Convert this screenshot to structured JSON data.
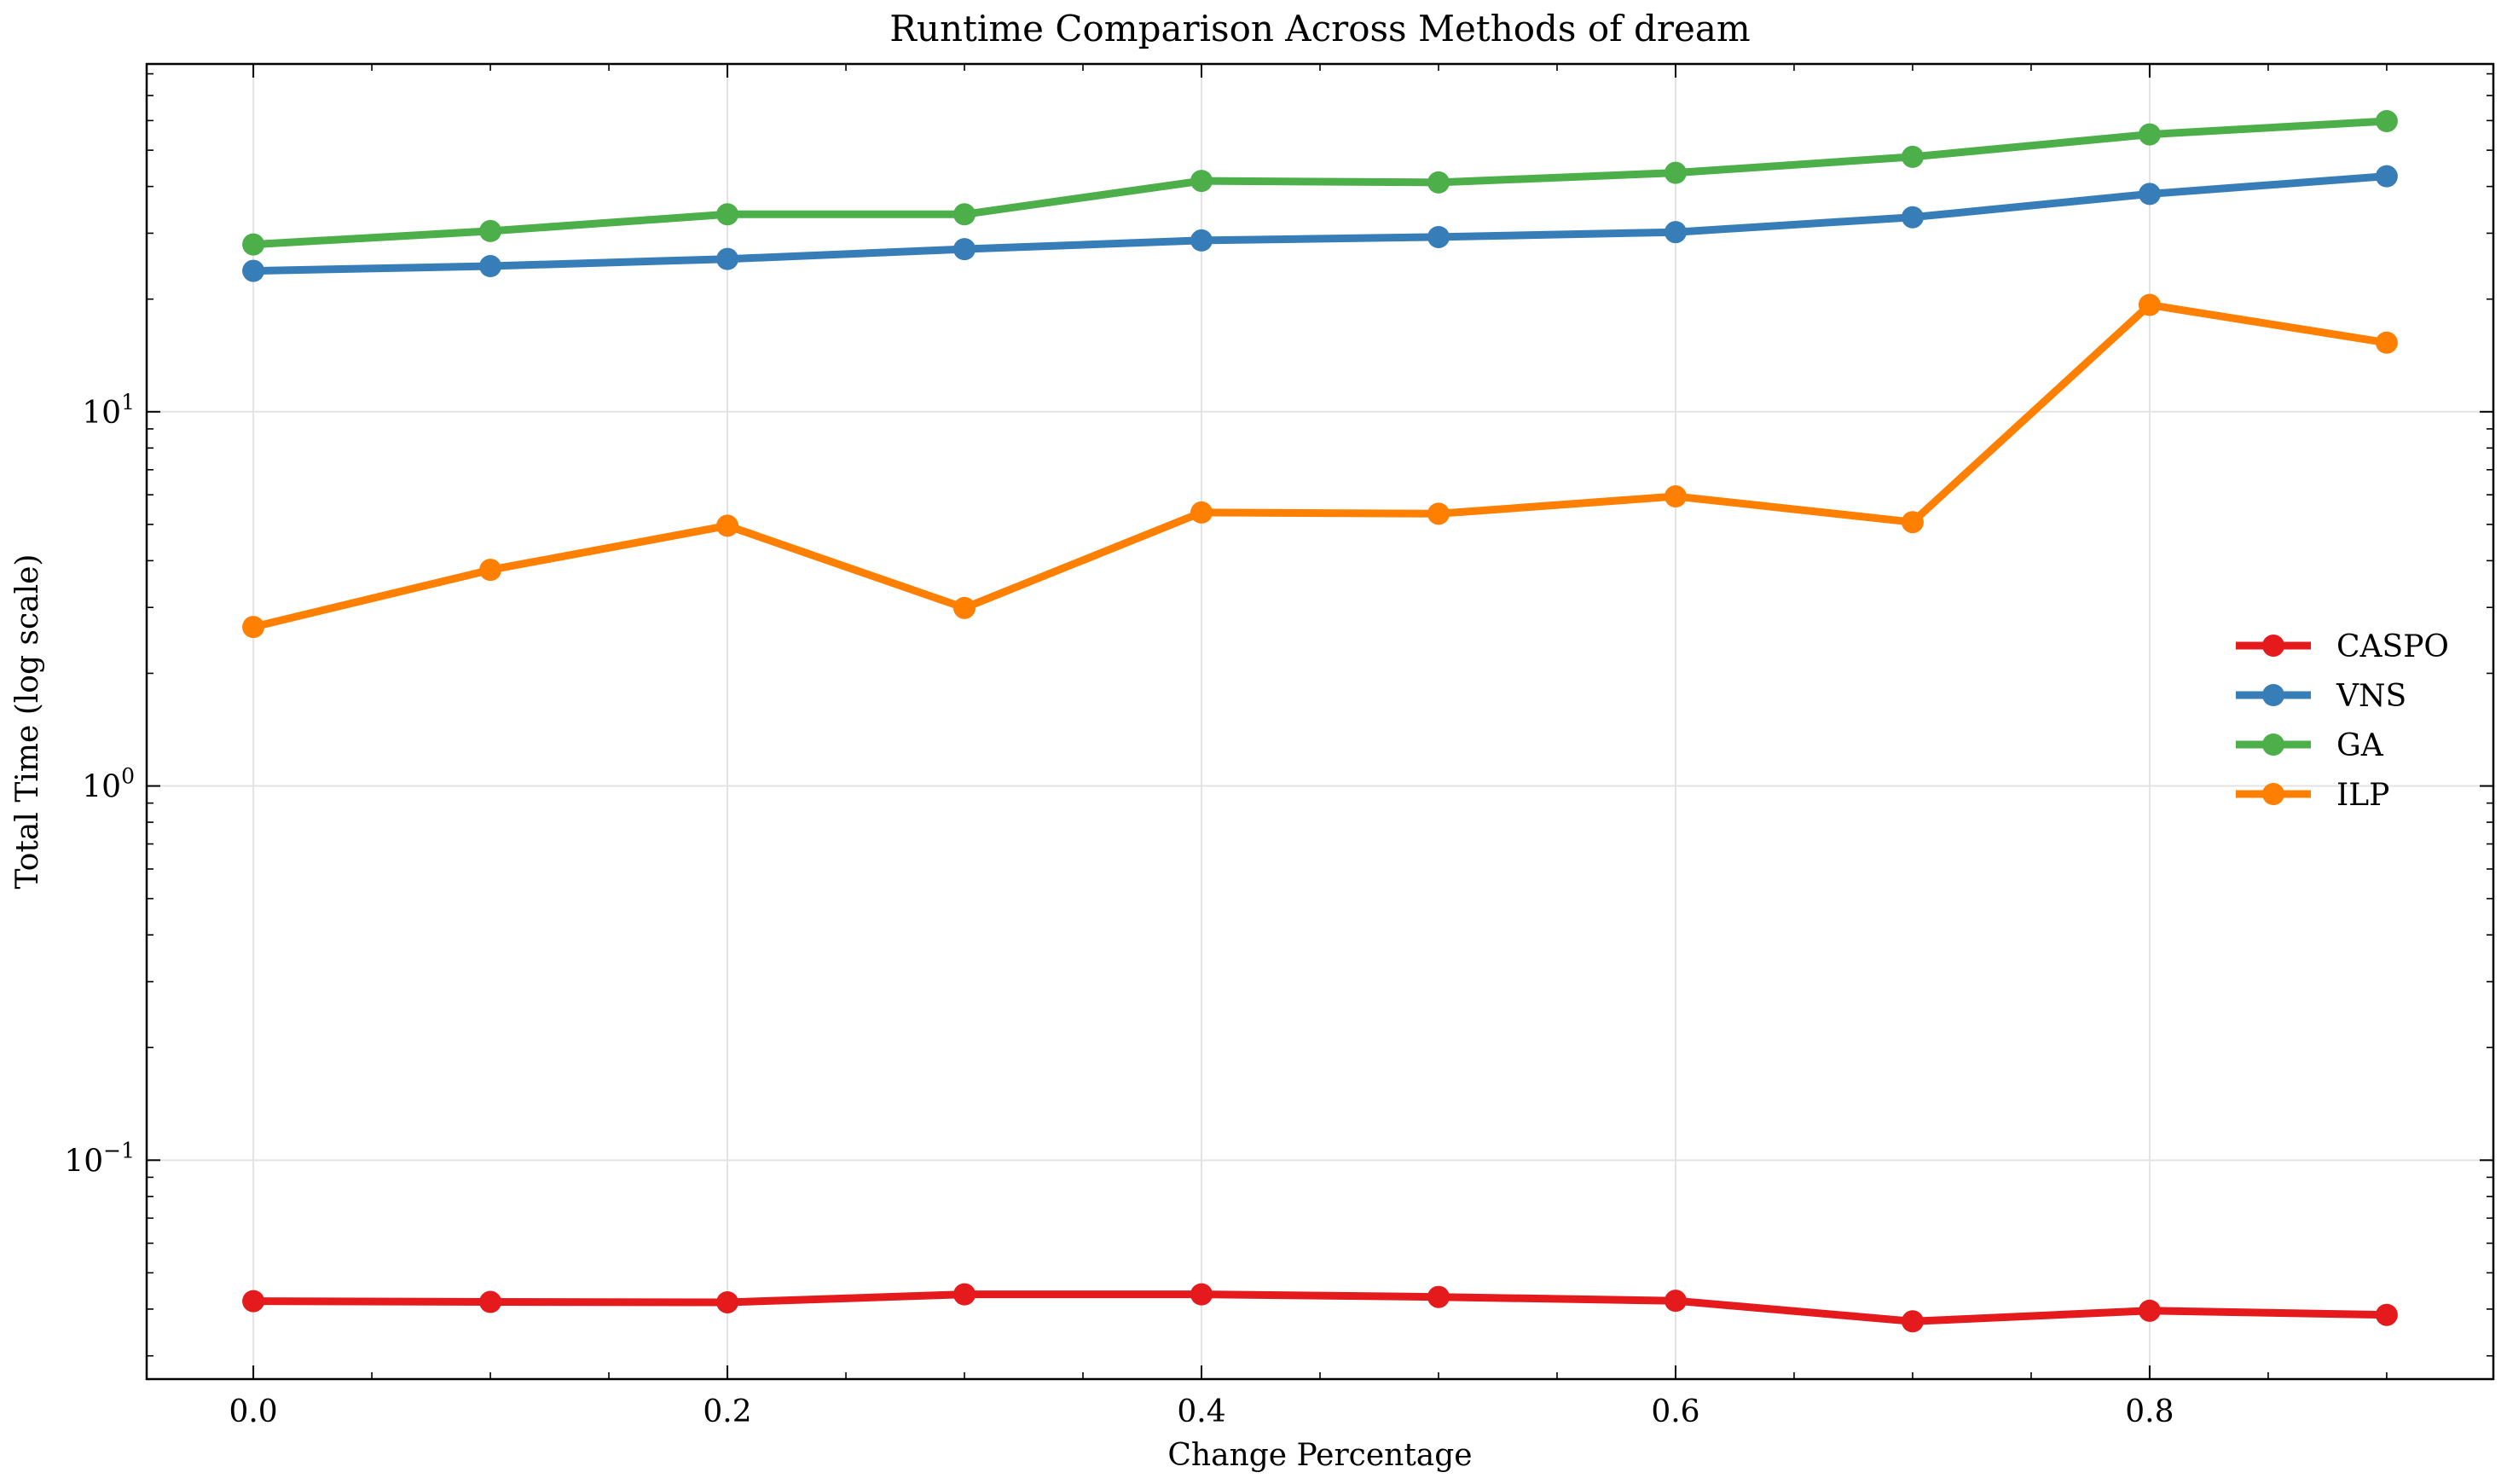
{
  "chart_data": {
    "type": "line",
    "title": "Runtime Comparison Across Methods of dream",
    "xlabel": "Change Percentage",
    "ylabel": "Total Time (log scale)",
    "yscale": "log",
    "xlim": [
      -0.045,
      0.945
    ],
    "ylim": [
      0.026,
      85
    ],
    "x_ticks": [
      0.0,
      0.2,
      0.4,
      0.6,
      0.8
    ],
    "x_tick_labels": [
      "0.0",
      "0.2",
      "0.4",
      "0.6",
      "0.8"
    ],
    "y_ticks": [
      0.1,
      1,
      10
    ],
    "y_tick_labels": [
      {
        "base": "10",
        "exp": "−1"
      },
      {
        "base": "10",
        "exp": "0"
      },
      {
        "base": "10",
        "exp": "1"
      }
    ],
    "grid": true,
    "legend": "center-right",
    "x": [
      0.0,
      0.1,
      0.2,
      0.3,
      0.4,
      0.5,
      0.6,
      0.7,
      0.8,
      0.9
    ],
    "series": [
      {
        "name": "CASPO",
        "color": "#e41a1c",
        "values": [
          0.042,
          0.0418,
          0.0417,
          0.0438,
          0.0438,
          0.0431,
          0.0421,
          0.0371,
          0.0396,
          0.0386
        ]
      },
      {
        "name": "VNS",
        "color": "#377eb8",
        "values": [
          23.8,
          24.5,
          25.6,
          27.2,
          28.7,
          29.3,
          30.2,
          33.1,
          38.2,
          42.6
        ]
      },
      {
        "name": "GA",
        "color": "#4daf4a",
        "values": [
          28.0,
          30.4,
          33.7,
          33.7,
          41.4,
          41.0,
          43.5,
          48.0,
          55.1,
          59.8
        ]
      },
      {
        "name": "ILP",
        "color": "#ff7f00",
        "values": [
          2.66,
          3.78,
          4.96,
          2.99,
          5.38,
          5.34,
          5.94,
          5.07,
          19.3,
          15.3
        ]
      }
    ]
  }
}
